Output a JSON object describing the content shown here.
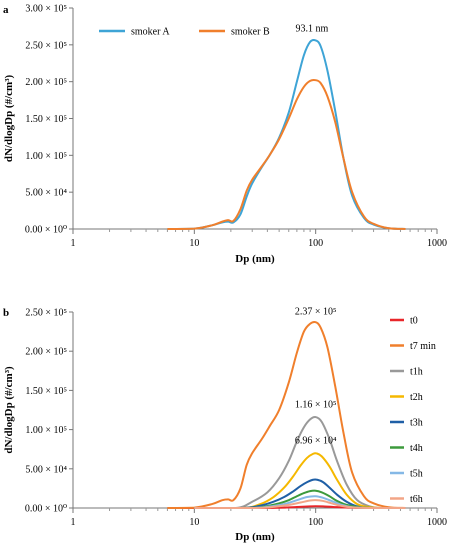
{
  "chart_data": [
    {
      "panel_label": "a",
      "type": "line",
      "xlabel": "Dp (nm)",
      "ylabel": "dN/dlogDp (#/cm³)",
      "xscale": "log",
      "xlim": [
        1,
        1000
      ],
      "ylim": [
        0,
        300000
      ],
      "x_ticks": [
        {
          "value": 1,
          "label": "1"
        },
        {
          "value": 10,
          "label": "10"
        },
        {
          "value": 100,
          "label": "100"
        },
        {
          "value": 1000,
          "label": "1000"
        }
      ],
      "y_ticks": [
        {
          "value": 0,
          "label": "0.00 × 10⁰"
        },
        {
          "value": 50000,
          "label": "5.00 × 10⁴"
        },
        {
          "value": 100000,
          "label": "1.00 × 10⁵"
        },
        {
          "value": 150000,
          "label": "1.50 × 10⁵"
        },
        {
          "value": 200000,
          "label": "2.00 × 10⁵"
        },
        {
          "value": 250000,
          "label": "2.50 × 10⁵"
        },
        {
          "value": 300000,
          "label": "3.00 × 10⁵"
        }
      ],
      "legend_position": "top-left",
      "annotations": [
        {
          "text": "93.1 nm",
          "x": 93.1,
          "y": 268000
        }
      ],
      "series": [
        {
          "name": "smoker A",
          "color": "#3ea4d6",
          "x": [
            6,
            10,
            14,
            17,
            19,
            21,
            24,
            27,
            30,
            36,
            42,
            50,
            60,
            70,
            80,
            90,
            100,
            110,
            125,
            145,
            170,
            200,
            250,
            300,
            400,
            550
          ],
          "y": [
            0,
            500,
            5000,
            9000,
            10000,
            9000,
            20000,
            44000,
            62000,
            84000,
            101000,
            124000,
            158000,
            200000,
            236000,
            254000,
            256000,
            248000,
            215000,
            160000,
            95000,
            45000,
            15000,
            6000,
            1000,
            0
          ]
        },
        {
          "name": "smoker B",
          "color": "#f07f2c",
          "x": [
            6,
            10,
            14,
            17,
            19,
            21,
            24,
            27,
            30,
            36,
            42,
            50,
            60,
            70,
            80,
            90,
            100,
            110,
            125,
            145,
            170,
            200,
            250,
            300,
            400,
            550
          ],
          "y": [
            0,
            500,
            5000,
            10000,
            12000,
            11000,
            27000,
            52000,
            67000,
            85000,
            101000,
            122000,
            150000,
            176000,
            193000,
            201000,
            202000,
            198000,
            180000,
            145000,
            95000,
            50000,
            17000,
            7000,
            1000,
            0
          ]
        }
      ]
    },
    {
      "panel_label": "b",
      "type": "line",
      "xlabel": "Dp (nm)",
      "ylabel": "dN/dlogDp (#/cm³)",
      "xscale": "log",
      "xlim": [
        1,
        1000
      ],
      "ylim": [
        0,
        250000
      ],
      "x_ticks": [
        {
          "value": 1,
          "label": "1"
        },
        {
          "value": 10,
          "label": "10"
        },
        {
          "value": 100,
          "label": "100"
        },
        {
          "value": 1000,
          "label": "1000"
        }
      ],
      "y_ticks": [
        {
          "value": 0,
          "label": "0.00 × 10⁰"
        },
        {
          "value": 50000,
          "label": "5.00 × 10⁴"
        },
        {
          "value": 100000,
          "label": "1.00 × 10⁵"
        },
        {
          "value": 150000,
          "label": "1.50 × 10⁵"
        },
        {
          "value": 200000,
          "label": "2.00 × 10⁵"
        },
        {
          "value": 250000,
          "label": "2.50 × 10⁵"
        }
      ],
      "legend_position": "right",
      "annotations": [
        {
          "text": "2.37 × 10⁵",
          "x": 100,
          "y": 247000
        },
        {
          "text": "1.16 × 10⁵",
          "x": 100,
          "y": 128000
        },
        {
          "text": "6.96 × 10⁴",
          "x": 100,
          "y": 82000
        }
      ],
      "series": [
        {
          "name": "t0",
          "color": "#e8262a",
          "x": [
            6,
            30,
            50,
            70,
            90,
            100,
            115,
            140,
            200,
            300,
            550
          ],
          "y": [
            0,
            0,
            300,
            1200,
            2000,
            2200,
            2000,
            1300,
            300,
            0,
            0
          ]
        },
        {
          "name": "t7 min",
          "color": "#f07f2c",
          "x": [
            6,
            10,
            14,
            17,
            19,
            21,
            24,
            27,
            30,
            36,
            42,
            50,
            60,
            70,
            80,
            90,
            100,
            110,
            125,
            145,
            170,
            200,
            250,
            300,
            400,
            550
          ],
          "y": [
            0,
            500,
            5000,
            10000,
            11000,
            10000,
            25000,
            55000,
            70000,
            88000,
            105000,
            125000,
            160000,
            198000,
            225000,
            235000,
            237000,
            230000,
            205000,
            155000,
            95000,
            45000,
            15000,
            6000,
            1000,
            0
          ]
        },
        {
          "name": "t1h",
          "color": "#999999",
          "x": [
            10,
            22,
            30,
            40,
            50,
            60,
            70,
            80,
            90,
            100,
            112,
            130,
            150,
            180,
            220,
            280,
            350,
            550
          ],
          "y": [
            0,
            0,
            8000,
            20000,
            38000,
            60000,
            85000,
            103000,
            113000,
            116000,
            110000,
            88000,
            60000,
            30000,
            10000,
            2000,
            0,
            0
          ]
        },
        {
          "name": "t2h",
          "color": "#f5b800",
          "x": [
            10,
            25,
            35,
            45,
            55,
            65,
            75,
            85,
            95,
            102,
            112,
            130,
            150,
            180,
            220,
            280,
            350,
            550
          ],
          "y": [
            0,
            0,
            5000,
            14000,
            26000,
            40000,
            54000,
            64000,
            69000,
            69600,
            66000,
            53000,
            36000,
            17000,
            5000,
            1000,
            0,
            0
          ]
        },
        {
          "name": "t3h",
          "color": "#1f5fa6",
          "x": [
            10,
            25,
            35,
            45,
            55,
            65,
            75,
            85,
            95,
            103,
            115,
            130,
            150,
            180,
            220,
            280,
            550
          ],
          "y": [
            0,
            0,
            3000,
            8000,
            14000,
            21000,
            28000,
            33000,
            36000,
            36000,
            33000,
            26000,
            17000,
            8000,
            2000,
            0,
            0
          ]
        },
        {
          "name": "t4h",
          "color": "#3c9a3c",
          "x": [
            10,
            28,
            38,
            50,
            60,
            70,
            80,
            90,
            100,
            112,
            130,
            150,
            180,
            230,
            300,
            550
          ],
          "y": [
            0,
            0,
            2000,
            6000,
            10000,
            15000,
            19000,
            21500,
            22000,
            20000,
            15000,
            9000,
            4000,
            1000,
            0,
            0
          ]
        },
        {
          "name": "t5h",
          "color": "#85b8e6",
          "x": [
            10,
            30,
            40,
            55,
            70,
            85,
            100,
            115,
            135,
            160,
            200,
            300,
            550
          ],
          "y": [
            0,
            0,
            1500,
            5000,
            10000,
            14000,
            15000,
            13000,
            9000,
            4500,
            1000,
            0,
            0
          ]
        },
        {
          "name": "t6h",
          "color": "#f2a587",
          "x": [
            10,
            32,
            45,
            60,
            75,
            90,
            100,
            115,
            135,
            160,
            200,
            300,
            550
          ],
          "y": [
            0,
            0,
            1500,
            4000,
            7000,
            9500,
            10000,
            9000,
            6000,
            3000,
            800,
            0,
            0
          ]
        }
      ]
    }
  ]
}
